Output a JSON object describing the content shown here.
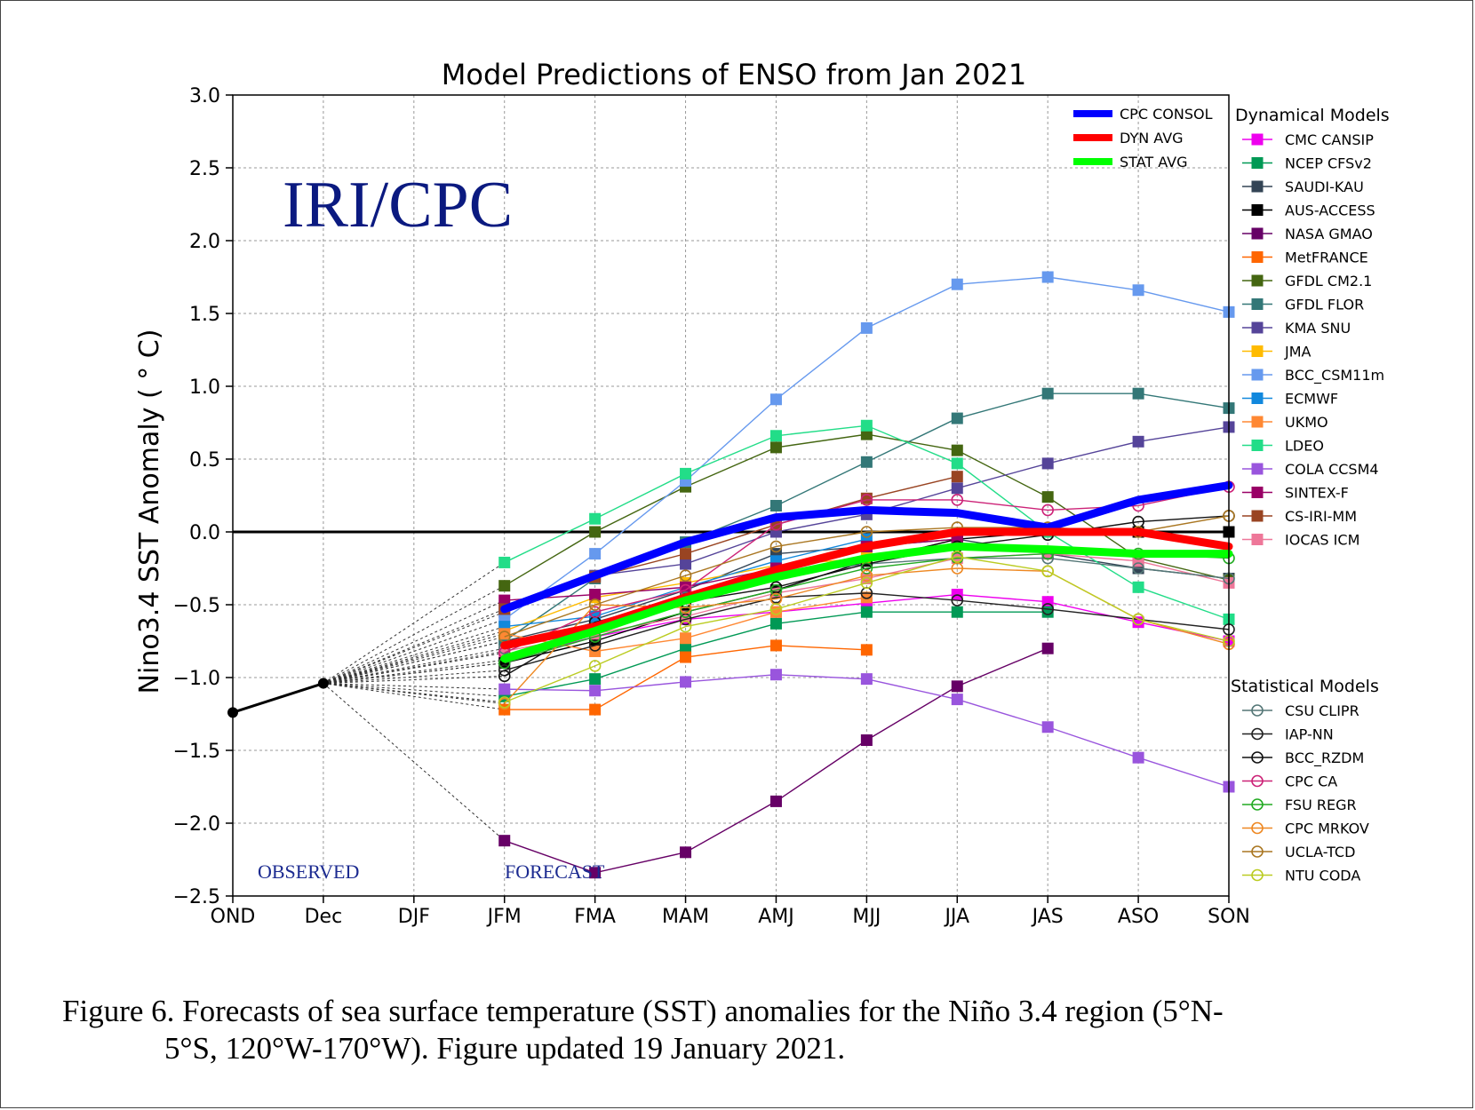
{
  "chart_data": {
    "type": "line",
    "title": "Model Predictions of ENSO from Jan 2021",
    "ylabel": "Nino3.4 SST Anomaly ( ° C)",
    "xlabel": "",
    "ylim": [
      -2.5,
      3.0
    ],
    "y_ticks": [
      "3.0",
      "2.5",
      "2.0",
      "1.5",
      "1.0",
      "0.5",
      "0.0",
      "−0.5",
      "−1.0",
      "−1.5",
      "−2.0",
      "−2.5"
    ],
    "categories": [
      "OND",
      "Dec",
      "DJF",
      "JFM",
      "FMA",
      "MAM",
      "AMJ",
      "MJJ",
      "JJA",
      "JAS",
      "ASO",
      "SON"
    ],
    "grid": true,
    "watermark": "IRI/CPC",
    "observed_label": "OBSERVED",
    "forecast_label": "FORECAST",
    "observed": [
      -1.24,
      -1.04
    ],
    "consensus_legend": [
      {
        "name": "CPC CONSOL",
        "color": "#0000ff"
      },
      {
        "name": "DYN AVG",
        "color": "#ff0000"
      },
      {
        "name": "STAT AVG",
        "color": "#00ff00"
      }
    ],
    "dynamical_title": "Dynamical Models",
    "statistical_title": "Statistical Models",
    "series": [
      {
        "name": "CPC CONSOL",
        "group": "consensus",
        "color": "#0000ff",
        "values": [
          null,
          null,
          null,
          -0.53,
          -0.3,
          -0.07,
          0.1,
          0.15,
          0.13,
          0.03,
          0.22,
          0.32
        ]
      },
      {
        "name": "DYN AVG",
        "group": "consensus",
        "color": "#ff0000",
        "values": [
          null,
          null,
          null,
          -0.78,
          -0.65,
          -0.45,
          -0.26,
          -0.1,
          0.0,
          0.0,
          0.0,
          -0.1
        ]
      },
      {
        "name": "STAT AVG",
        "group": "consensus",
        "color": "#00ff00",
        "values": [
          null,
          null,
          null,
          -0.87,
          -0.68,
          -0.47,
          -0.31,
          -0.18,
          -0.1,
          -0.12,
          -0.15,
          -0.15
        ]
      },
      {
        "name": "CMC CANSIP",
        "group": "dyn",
        "color": "#ee00ee",
        "values": [
          null,
          null,
          null,
          -0.88,
          -0.72,
          -0.6,
          -0.55,
          -0.49,
          -0.43,
          -0.48,
          -0.62,
          -0.75
        ]
      },
      {
        "name": "NCEP CFSv2",
        "group": "dyn",
        "color": "#009955",
        "values": [
          null,
          null,
          null,
          -1.13,
          -1.01,
          -0.8,
          -0.63,
          -0.55,
          -0.55,
          -0.55,
          null,
          null
        ]
      },
      {
        "name": "SAUDI-KAU",
        "group": "dyn",
        "color": "#334455",
        "values": [
          null,
          null,
          null,
          -0.75,
          -0.6,
          -0.4,
          -0.15,
          -0.1,
          -0.05,
          -0.15,
          -0.25,
          -0.32
        ]
      },
      {
        "name": "AUS-ACCESS",
        "group": "dyn",
        "color": "#000000",
        "values": [
          null,
          null,
          null,
          -0.9,
          -0.75,
          -0.55,
          -0.4,
          -0.2,
          -0.05,
          0.0,
          0.0,
          0.0
        ]
      },
      {
        "name": "NASA GMAO",
        "group": "dyn",
        "color": "#660066",
        "values": [
          null,
          null,
          null,
          -2.12,
          -2.34,
          -2.2,
          -1.85,
          -1.43,
          -1.06,
          -0.8,
          null,
          null
        ]
      },
      {
        "name": "MetFRANCE",
        "group": "dyn",
        "color": "#ff6600",
        "values": [
          null,
          null,
          null,
          -1.22,
          -1.22,
          -0.86,
          -0.78,
          -0.81,
          null,
          null,
          null,
          null
        ]
      },
      {
        "name": "GFDL CM2.1",
        "group": "dyn",
        "color": "#446611",
        "values": [
          null,
          null,
          null,
          -0.37,
          0.0,
          0.31,
          0.58,
          0.67,
          0.56,
          0.24,
          -0.18,
          -0.33
        ]
      },
      {
        "name": "GFDL FLOR",
        "group": "dyn",
        "color": "#337777",
        "values": [
          null,
          null,
          null,
          -0.75,
          -0.32,
          -0.07,
          0.18,
          0.48,
          0.78,
          0.95,
          0.95,
          0.85
        ]
      },
      {
        "name": "KMA SNU",
        "group": "dyn",
        "color": "#554499",
        "values": [
          null,
          null,
          null,
          -0.55,
          -0.3,
          -0.22,
          0.0,
          0.12,
          0.3,
          0.47,
          0.62,
          0.72
        ]
      },
      {
        "name": "JMA",
        "group": "dyn",
        "color": "#ffbb00",
        "values": [
          null,
          null,
          null,
          -0.68,
          -0.45,
          -0.35,
          -0.23,
          -0.18,
          null,
          null,
          null,
          null
        ]
      },
      {
        "name": "BCC_CSM11m",
        "group": "dyn",
        "color": "#6699ee",
        "values": [
          null,
          null,
          null,
          -0.6,
          -0.15,
          0.35,
          0.91,
          1.4,
          1.7,
          1.75,
          1.66,
          1.51
        ]
      },
      {
        "name": "ECMWF",
        "group": "dyn",
        "color": "#1188dd",
        "values": [
          null,
          null,
          null,
          -0.65,
          -0.58,
          -0.38,
          -0.2,
          -0.05,
          null,
          null,
          null,
          null
        ]
      },
      {
        "name": "UKMO",
        "group": "dyn",
        "color": "#ff8833",
        "values": [
          null,
          null,
          null,
          -0.7,
          -0.82,
          -0.73,
          -0.55,
          -0.45,
          null,
          null,
          null,
          null
        ]
      },
      {
        "name": "LDEO",
        "group": "dyn",
        "color": "#22dd88",
        "values": [
          null,
          null,
          null,
          -0.21,
          0.09,
          0.4,
          0.66,
          0.73,
          0.47,
          0.0,
          -0.38,
          -0.6
        ]
      },
      {
        "name": "COLA CCSM4",
        "group": "dyn",
        "color": "#9955dd",
        "values": [
          null,
          null,
          null,
          -1.08,
          -1.09,
          -1.03,
          -0.98,
          -1.01,
          -1.15,
          -1.34,
          -1.55,
          -1.75
        ]
      },
      {
        "name": "SINTEX-F",
        "group": "dyn",
        "color": "#990066",
        "values": [
          null,
          null,
          null,
          -0.47,
          -0.43,
          -0.38,
          -0.25,
          -0.1,
          -0.05,
          null,
          null,
          null
        ]
      },
      {
        "name": "CS-IRI-MM",
        "group": "dyn",
        "color": "#994422",
        "values": [
          null,
          null,
          null,
          -0.53,
          -0.31,
          -0.15,
          0.05,
          0.23,
          0.38,
          null,
          null,
          null
        ]
      },
      {
        "name": "IOCAS ICM",
        "group": "dyn",
        "color": "#ee7799",
        "values": [
          null,
          null,
          null,
          -0.82,
          -0.7,
          -0.58,
          -0.42,
          -0.32,
          -0.18,
          -0.15,
          -0.2,
          -0.35
        ]
      },
      {
        "name": "CSU CLIPR",
        "group": "stat",
        "color": "#557777",
        "values": [
          null,
          null,
          null,
          -0.8,
          -0.62,
          -0.45,
          -0.3,
          -0.22,
          -0.18,
          -0.18,
          -0.25,
          -0.32
        ]
      },
      {
        "name": "IAP-NN",
        "group": "stat",
        "color": "#222222",
        "values": [
          null,
          null,
          null,
          -0.95,
          -0.78,
          -0.6,
          -0.45,
          -0.42,
          -0.47,
          -0.53,
          -0.6,
          -0.67
        ]
      },
      {
        "name": "BCC_RZDM",
        "group": "stat",
        "color": "#111111",
        "values": [
          null,
          null,
          null,
          -0.99,
          -0.62,
          -0.48,
          -0.38,
          -0.22,
          -0.1,
          -0.02,
          0.07,
          0.11
        ]
      },
      {
        "name": "CPC CA",
        "group": "stat",
        "color": "#cc2277",
        "values": [
          null,
          null,
          null,
          -0.83,
          -0.55,
          -0.4,
          0.05,
          0.22,
          0.22,
          0.15,
          0.18,
          0.31
        ]
      },
      {
        "name": "FSU REGR",
        "group": "stat",
        "color": "#22aa22",
        "values": [
          null,
          null,
          null,
          -0.9,
          -0.72,
          -0.55,
          -0.4,
          -0.25,
          -0.18,
          -0.15,
          -0.15,
          -0.18
        ]
      },
      {
        "name": "CPC MRKOV",
        "group": "stat",
        "color": "#ee8822",
        "values": [
          null,
          null,
          null,
          -1.18,
          -0.5,
          -0.52,
          -0.46,
          -0.3,
          -0.25,
          -0.27,
          -0.6,
          -0.77
        ]
      },
      {
        "name": "UCLA-TCD",
        "group": "stat",
        "color": "#aa7722",
        "values": [
          null,
          null,
          null,
          -0.72,
          -0.5,
          -0.3,
          -0.1,
          0.0,
          0.03,
          0.03,
          0.0,
          0.11
        ]
      },
      {
        "name": "NTU CODA",
        "group": "stat",
        "color": "#bbcc22",
        "values": [
          null,
          null,
          null,
          -1.17,
          -0.92,
          -0.65,
          -0.53,
          -0.35,
          -0.17,
          -0.27,
          -0.6,
          -0.75
        ]
      }
    ]
  },
  "caption": {
    "line1": "Figure  6. Forecasts of sea surface temperature (SST) anomalies  for the Niño 3.4 region (5°N-",
    "line2": "5°S, 120°W-170°W).  Figure updated 19 January 2021."
  }
}
